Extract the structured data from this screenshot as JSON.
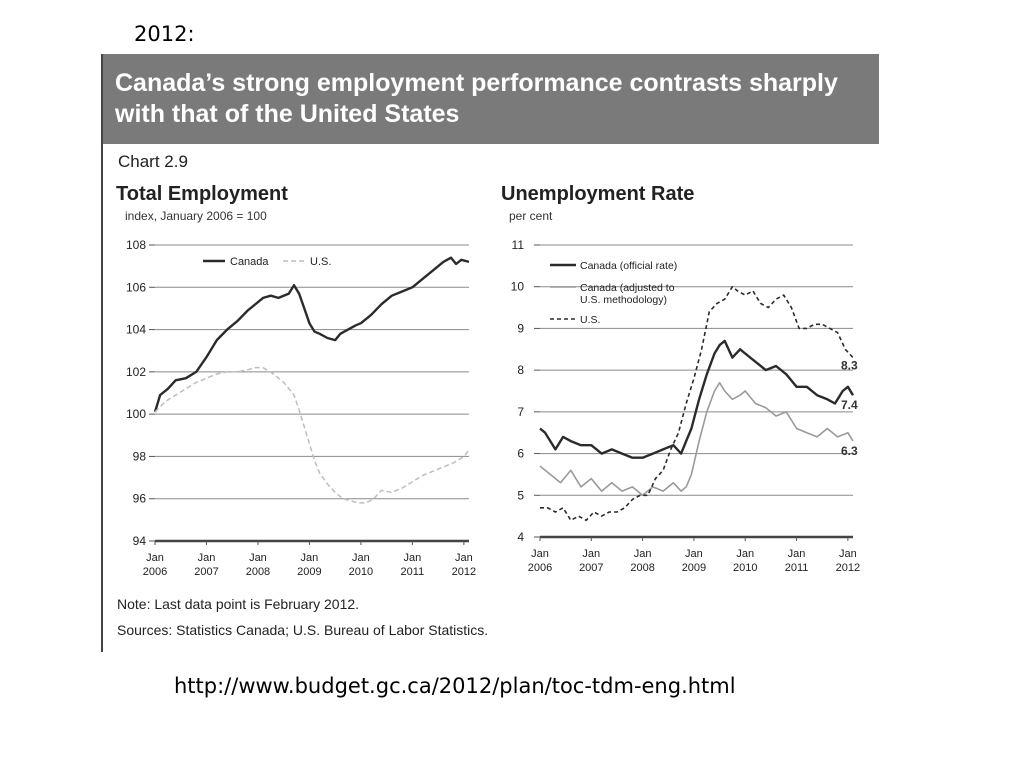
{
  "slide": {
    "year_label": "2012:",
    "url": "http://www.budget.gc.ca/2012/plan/toc-tdm-eng.html"
  },
  "panel": {
    "header_title": "Canada’s strong employment performance contrasts sharply with that of the United States",
    "chart_number": "Chart 2.9",
    "note": "Note: Last data point is February 2012.",
    "sources": "Sources: Statistics Canada; U.S. Bureau of Labor Statistics."
  },
  "colors": {
    "header_bg": "#7a7a7a",
    "canada_dark": "#2b2b2b",
    "canada_adjusted": "#9a9a9a",
    "us_line": "#bdbdbd"
  },
  "chart_data": [
    {
      "type": "line",
      "title": "Total Employment",
      "ylabel": "index, January 2006 = 100",
      "ylim": [
        94,
        108
      ],
      "yticks": [
        94,
        96,
        98,
        100,
        102,
        104,
        106,
        108
      ],
      "xlim": [
        2006.0,
        2012.1
      ],
      "xtick_labels": [
        [
          "Jan",
          "2006"
        ],
        [
          "Jan",
          "2007"
        ],
        [
          "Jan",
          "2008"
        ],
        [
          "Jan",
          "2009"
        ],
        [
          "Jan",
          "2010"
        ],
        [
          "Jan",
          "2011"
        ],
        [
          "Jan",
          "2012"
        ]
      ],
      "xtick_values": [
        2006,
        2007,
        2008,
        2009,
        2010,
        2011,
        2012
      ],
      "grid": true,
      "legend": "top-center",
      "series": [
        {
          "name": "Canada",
          "style": "solid-dark",
          "x": [
            2006.0,
            2006.1,
            2006.25,
            2006.4,
            2006.6,
            2006.8,
            2007.0,
            2007.2,
            2007.4,
            2007.6,
            2007.8,
            2008.0,
            2008.1,
            2008.25,
            2008.4,
            2008.6,
            2008.7,
            2008.8,
            2008.9,
            2009.0,
            2009.1,
            2009.2,
            2009.35,
            2009.5,
            2009.6,
            2009.75,
            2009.9,
            2010.0,
            2010.2,
            2010.4,
            2010.6,
            2010.8,
            2011.0,
            2011.2,
            2011.4,
            2011.6,
            2011.75,
            2011.85,
            2011.95,
            2012.1
          ],
          "values": [
            100.1,
            100.9,
            101.2,
            101.6,
            101.7,
            102.0,
            102.7,
            103.5,
            104.0,
            104.4,
            104.9,
            105.3,
            105.5,
            105.6,
            105.5,
            105.7,
            106.1,
            105.7,
            105.0,
            104.3,
            103.9,
            103.8,
            103.6,
            103.5,
            103.8,
            104.0,
            104.2,
            104.3,
            104.7,
            105.2,
            105.6,
            105.8,
            106.0,
            106.4,
            106.8,
            107.2,
            107.4,
            107.1,
            107.3,
            107.2
          ]
        },
        {
          "name": "U.S.",
          "style": "dashed-light",
          "x": [
            2006.0,
            2006.2,
            2006.4,
            2006.6,
            2006.8,
            2007.0,
            2007.2,
            2007.4,
            2007.6,
            2007.8,
            2007.95,
            2008.1,
            2008.3,
            2008.5,
            2008.7,
            2008.8,
            2008.9,
            2009.0,
            2009.1,
            2009.2,
            2009.35,
            2009.5,
            2009.65,
            2009.8,
            2009.95,
            2010.1,
            2010.25,
            2010.4,
            2010.6,
            2010.8,
            2011.0,
            2011.2,
            2011.4,
            2011.6,
            2011.8,
            2012.0,
            2012.1
          ],
          "values": [
            100.1,
            100.6,
            100.9,
            101.2,
            101.5,
            101.7,
            101.9,
            102.0,
            102.0,
            102.1,
            102.2,
            102.2,
            101.9,
            101.5,
            100.9,
            100.2,
            99.4,
            98.6,
            97.8,
            97.2,
            96.7,
            96.3,
            96.0,
            95.9,
            95.8,
            95.8,
            96.0,
            96.4,
            96.3,
            96.5,
            96.8,
            97.1,
            97.3,
            97.5,
            97.7,
            98.0,
            98.3
          ]
        }
      ]
    },
    {
      "type": "line",
      "title": "Unemployment Rate",
      "ylabel": "per cent",
      "ylim": [
        4,
        11
      ],
      "yticks": [
        4,
        5,
        6,
        7,
        8,
        9,
        10,
        11
      ],
      "xlim": [
        2006.0,
        2012.1
      ],
      "xtick_labels": [
        [
          "Jan",
          "2006"
        ],
        [
          "Jan",
          "2007"
        ],
        [
          "Jan",
          "2008"
        ],
        [
          "Jan",
          "2009"
        ],
        [
          "Jan",
          "2010"
        ],
        [
          "Jan",
          "2011"
        ],
        [
          "Jan",
          "2012"
        ]
      ],
      "xtick_values": [
        2006,
        2007,
        2008,
        2009,
        2010,
        2011,
        2012
      ],
      "grid": true,
      "legend": "top-left",
      "annotations": [
        "8.3",
        "7.4",
        "6.3"
      ],
      "series": [
        {
          "name": "Canada (official rate)",
          "style": "solid-dark",
          "x": [
            2006.0,
            2006.1,
            2006.2,
            2006.3,
            2006.45,
            2006.6,
            2006.8,
            2007.0,
            2007.2,
            2007.4,
            2007.6,
            2007.8,
            2008.0,
            2008.2,
            2008.4,
            2008.6,
            2008.75,
            2008.85,
            2008.95,
            2009.1,
            2009.25,
            2009.4,
            2009.5,
            2009.6,
            2009.75,
            2009.9,
            2010.0,
            2010.2,
            2010.4,
            2010.6,
            2010.8,
            2011.0,
            2011.2,
            2011.4,
            2011.6,
            2011.75,
            2011.9,
            2012.0,
            2012.1
          ],
          "values": [
            6.6,
            6.5,
            6.3,
            6.1,
            6.4,
            6.3,
            6.2,
            6.2,
            6.0,
            6.1,
            6.0,
            5.9,
            5.9,
            6.0,
            6.1,
            6.2,
            6.0,
            6.3,
            6.6,
            7.3,
            7.9,
            8.4,
            8.6,
            8.7,
            8.3,
            8.5,
            8.4,
            8.2,
            8.0,
            8.1,
            7.9,
            7.6,
            7.6,
            7.4,
            7.3,
            7.2,
            7.5,
            7.6,
            7.4
          ]
        },
        {
          "name": "Canada (adjusted to U.S. methodology)",
          "style": "solid-light",
          "x": [
            2006.0,
            2006.2,
            2006.4,
            2006.6,
            2006.8,
            2007.0,
            2007.2,
            2007.4,
            2007.6,
            2007.8,
            2008.0,
            2008.2,
            2008.4,
            2008.6,
            2008.75,
            2008.85,
            2008.95,
            2009.1,
            2009.25,
            2009.4,
            2009.5,
            2009.6,
            2009.75,
            2009.9,
            2010.0,
            2010.2,
            2010.4,
            2010.6,
            2010.8,
            2011.0,
            2011.2,
            2011.4,
            2011.6,
            2011.8,
            2012.0,
            2012.1
          ],
          "values": [
            5.7,
            5.5,
            5.3,
            5.6,
            5.2,
            5.4,
            5.1,
            5.3,
            5.1,
            5.2,
            5.0,
            5.2,
            5.1,
            5.3,
            5.1,
            5.2,
            5.5,
            6.3,
            7.0,
            7.5,
            7.7,
            7.5,
            7.3,
            7.4,
            7.5,
            7.2,
            7.1,
            6.9,
            7.0,
            6.6,
            6.5,
            6.4,
            6.6,
            6.4,
            6.5,
            6.3
          ]
        },
        {
          "name": "U.S.",
          "style": "dashed-dark",
          "x": [
            2006.0,
            2006.15,
            2006.3,
            2006.45,
            2006.6,
            2006.75,
            2006.9,
            2007.05,
            2007.2,
            2007.35,
            2007.5,
            2007.65,
            2007.8,
            2007.95,
            2008.1,
            2008.25,
            2008.4,
            2008.55,
            2008.7,
            2008.85,
            2009.0,
            2009.15,
            2009.3,
            2009.45,
            2009.6,
            2009.75,
            2009.85,
            2010.0,
            2010.15,
            2010.3,
            2010.45,
            2010.6,
            2010.75,
            2010.9,
            2011.05,
            2011.2,
            2011.35,
            2011.5,
            2011.65,
            2011.8,
            2011.95,
            2012.1
          ],
          "values": [
            4.7,
            4.7,
            4.6,
            4.7,
            4.4,
            4.5,
            4.4,
            4.6,
            4.5,
            4.6,
            4.6,
            4.7,
            4.9,
            5.0,
            5.0,
            5.4,
            5.6,
            6.1,
            6.5,
            7.2,
            7.8,
            8.5,
            9.4,
            9.6,
            9.7,
            10.0,
            9.9,
            9.8,
            9.9,
            9.6,
            9.5,
            9.7,
            9.8,
            9.5,
            9.0,
            9.0,
            9.1,
            9.1,
            9.0,
            8.9,
            8.5,
            8.3
          ]
        }
      ]
    }
  ]
}
